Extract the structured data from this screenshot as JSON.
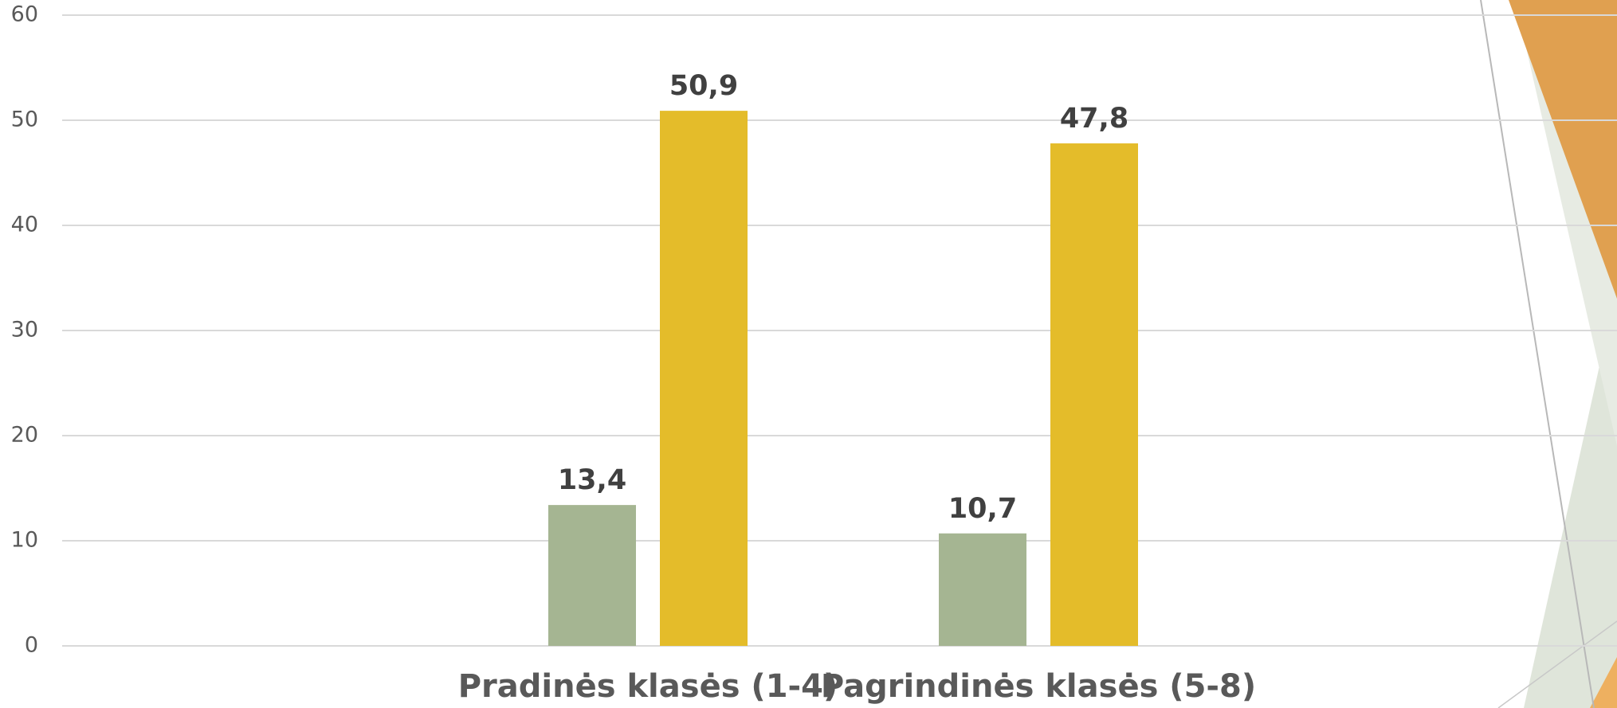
{
  "chart_data": {
    "type": "bar",
    "categories": [
      "Pradinės klasės (1-4)",
      "Pagrindinės klasės (5-8)"
    ],
    "series": [
      {
        "color": "#a5b592",
        "values": [
          13.4,
          10.7
        ],
        "value_labels": [
          "13,4",
          "10,7"
        ]
      },
      {
        "color": "#e4bc2a",
        "values": [
          50.9,
          47.8
        ],
        "value_labels": [
          "50,9",
          "47,8"
        ]
      }
    ],
    "ylim": [
      0,
      60
    ],
    "yticks": [
      0,
      10,
      20,
      30,
      40,
      50,
      60
    ],
    "grid": true
  }
}
